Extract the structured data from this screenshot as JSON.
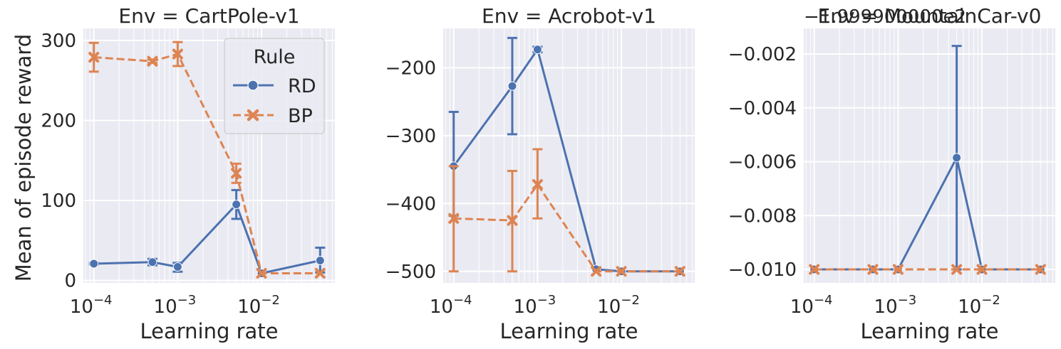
{
  "figure": {
    "ylabel": "Mean of episode reward",
    "xlabel": "Learning rate"
  },
  "legend": {
    "title": "Rule",
    "entries": [
      "RD",
      "BP"
    ]
  },
  "colors": {
    "RD": "#4c72b0",
    "BP": "#dd8452",
    "panel_bg": "#eaeaf2",
    "grid": "#ffffff"
  },
  "chart_data": [
    {
      "type": "line",
      "title": "Env = CartPole-v1",
      "xlabel": "Learning rate",
      "ylabel": "Mean of episode reward",
      "xscale": "log",
      "xlim": [
        7.5e-05,
        0.075
      ],
      "ylim": [
        -3,
        315
      ],
      "xticks": [
        {
          "v": 0.0001,
          "m": "10",
          "e": "−4"
        },
        {
          "v": 0.001,
          "m": "10",
          "e": "−3"
        },
        {
          "v": 0.01,
          "m": "10",
          "e": "−2"
        }
      ],
      "yticks": [
        {
          "v": 0,
          "label": "0"
        },
        {
          "v": 100,
          "label": "100"
        },
        {
          "v": 200,
          "label": "200"
        },
        {
          "v": 300,
          "label": "300"
        }
      ],
      "x": [
        0.0001,
        0.0005,
        0.001,
        0.005,
        0.01,
        0.05
      ],
      "grid": true,
      "legend_position": "top-right",
      "series": [
        {
          "name": "RD",
          "values": [
            21,
            23,
            17,
            95,
            9,
            25
          ],
          "err_low": [
            20,
            19,
            11,
            77,
            9,
            10
          ],
          "err_high": [
            22,
            27,
            22,
            113,
            9,
            41
          ]
        },
        {
          "name": "BP",
          "values": [
            279,
            274,
            283,
            134,
            9,
            9
          ],
          "err_low": [
            261,
            272,
            268,
            122,
            9,
            9
          ],
          "err_high": [
            297,
            276,
            298,
            146,
            9,
            9
          ]
        }
      ]
    },
    {
      "type": "line",
      "title": "Env = Acrobot-v1",
      "xlabel": "Learning rate",
      "xscale": "log",
      "xlim": [
        7.5e-05,
        0.075
      ],
      "ylim": [
        -517,
        -142
      ],
      "xticks": [
        {
          "v": 0.0001,
          "m": "10",
          "e": "−4"
        },
        {
          "v": 0.001,
          "m": "10",
          "e": "−3"
        },
        {
          "v": 0.01,
          "m": "10",
          "e": "−2"
        }
      ],
      "yticks": [
        {
          "v": -500,
          "label": "−500"
        },
        {
          "v": -400,
          "label": "−400"
        },
        {
          "v": -300,
          "label": "−300"
        },
        {
          "v": -200,
          "label": "−200"
        }
      ],
      "x": [
        0.0001,
        0.0005,
        0.001,
        0.005,
        0.01,
        0.05
      ],
      "grid": true,
      "series": [
        {
          "name": "RD",
          "values": [
            -345,
            -227,
            -173,
            -497,
            -500,
            -500
          ],
          "err_low": [
            -418,
            -298,
            -177,
            -497,
            -500,
            -500
          ],
          "err_high": [
            -265,
            -156,
            -169,
            -497,
            -500,
            -500
          ]
        },
        {
          "name": "BP",
          "values": [
            -422,
            -425,
            -372,
            -500,
            -500,
            -500
          ],
          "err_low": [
            -500,
            -500,
            -422,
            -500,
            -500,
            -500
          ],
          "err_high": [
            -345,
            -352,
            -320,
            -500,
            -500,
            -500
          ]
        }
      ]
    },
    {
      "type": "line",
      "title": "Env = MountainCar-v0",
      "offset_label": "−1.999900000e2",
      "xlabel": "Learning rate",
      "xscale": "log",
      "xlim": [
        7.5e-05,
        0.075
      ],
      "ylim": [
        -0.0105,
        -0.00105
      ],
      "xticks": [
        {
          "v": 0.0001,
          "m": "10",
          "e": "−4"
        },
        {
          "v": 0.001,
          "m": "10",
          "e": "−3"
        },
        {
          "v": 0.01,
          "m": "10",
          "e": "−2"
        }
      ],
      "yticks": [
        {
          "v": -0.01,
          "label": "−0.010"
        },
        {
          "v": -0.008,
          "label": "−0.008"
        },
        {
          "v": -0.006,
          "label": "−0.006"
        },
        {
          "v": -0.004,
          "label": "−0.004"
        },
        {
          "v": -0.002,
          "label": "−0.002"
        }
      ],
      "x": [
        0.0001,
        0.0005,
        0.001,
        0.005,
        0.01,
        0.05
      ],
      "grid": true,
      "series": [
        {
          "name": "RD",
          "values": [
            -0.01,
            -0.01,
            -0.01,
            -0.00585,
            -0.01,
            -0.01
          ],
          "err_low": [
            -0.01,
            -0.01,
            -0.01,
            -0.01,
            -0.01,
            -0.01
          ],
          "err_high": [
            -0.01,
            -0.01,
            -0.01,
            -0.0017,
            -0.01,
            -0.01
          ]
        },
        {
          "name": "BP",
          "values": [
            -0.01,
            -0.01,
            -0.01,
            -0.01,
            -0.01,
            -0.01
          ],
          "err_low": [
            -0.01,
            -0.01,
            -0.01,
            -0.01,
            -0.01,
            -0.01
          ],
          "err_high": [
            -0.01,
            -0.01,
            -0.01,
            -0.01,
            -0.01,
            -0.01
          ]
        }
      ]
    }
  ]
}
